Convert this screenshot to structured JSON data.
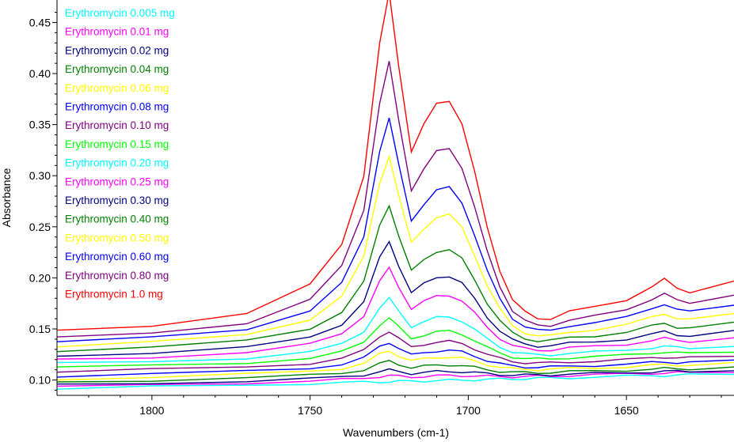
{
  "chart_data": {
    "type": "line",
    "title": "",
    "xlabel": "Wavenumbers (cm-1)",
    "ylabel": "Absorbance",
    "xlim": [
      1830,
      1616
    ],
    "x_reversed": true,
    "ylim": [
      0.085,
      0.472
    ],
    "grid": false,
    "legend_placement": "top-left",
    "x_ticks": [
      1800,
      1750,
      1700,
      1650
    ],
    "y_ticks": [
      0.1,
      0.15,
      0.2,
      0.25,
      0.3,
      0.35,
      0.4,
      0.45
    ],
    "x_tick_labels": [
      "1800",
      "1750",
      "1700",
      "1650"
    ],
    "y_tick_labels": [
      "0.10",
      "0.15",
      "0.20",
      "0.25",
      "0.30",
      "0.35",
      "0.40",
      "0.45"
    ],
    "series_shape_x": [
      1830,
      1800,
      1770,
      1750,
      1740,
      1733,
      1728,
      1725,
      1722,
      1718,
      1714,
      1710,
      1706,
      1702,
      1698,
      1694,
      1690,
      1686,
      1682,
      1678,
      1674,
      1668,
      1660,
      1650,
      1642,
      1638,
      1634,
      1630,
      1616
    ],
    "series": [
      {
        "name": "Erythromycin 0.005 mg",
        "color": "#00ffff",
        "b0": 0.091,
        "slope": 0.015,
        "peak": 0.0
      },
      {
        "name": "Erythromycin 0.01 mg",
        "color": "#ff00ff",
        "b0": 0.093,
        "slope": 0.015,
        "peak": 0.004
      },
      {
        "name": "Erythromycin 0.02 mg",
        "color": "#000080",
        "b0": 0.095,
        "slope": 0.014,
        "peak": 0.008
      },
      {
        "name": "Erythromycin 0.04 mg",
        "color": "#008000",
        "b0": 0.098,
        "slope": 0.013,
        "peak": 0.014
      },
      {
        "name": "Erythromycin 0.06 mg",
        "color": "#ffff00",
        "b0": 0.101,
        "slope": 0.013,
        "peak": 0.021
      },
      {
        "name": "Erythromycin 0.08 mg",
        "color": "#0000ff",
        "b0": 0.104,
        "slope": 0.012,
        "peak": 0.027
      },
      {
        "name": "Erythromycin 0.10 mg",
        "color": "#800080",
        "b0": 0.108,
        "slope": 0.012,
        "peak": 0.034
      },
      {
        "name": "Erythromycin 0.15 mg",
        "color": "#00ff00",
        "b0": 0.112,
        "slope": 0.012,
        "peak": 0.043
      },
      {
        "name": "Erythromycin 0.20 mg",
        "color": "#00ffff",
        "b0": 0.116,
        "slope": 0.012,
        "peak": 0.058
      },
      {
        "name": "Erythromycin 0.25 mg",
        "color": "#ff00ff",
        "b0": 0.12,
        "slope": 0.013,
        "peak": 0.083
      },
      {
        "name": "Erythromycin 0.30 mg",
        "color": "#000080",
        "b0": 0.124,
        "slope": 0.013,
        "peak": 0.105
      },
      {
        "name": "Erythromycin 0.40 mg",
        "color": "#008000",
        "b0": 0.129,
        "slope": 0.013,
        "peak": 0.136
      },
      {
        "name": "Erythromycin 0.50 mg",
        "color": "#ffff00",
        "b0": 0.133,
        "slope": 0.014,
        "peak": 0.18
      },
      {
        "name": "Erythromycin 0.60 mg",
        "color": "#0000ff",
        "b0": 0.137,
        "slope": 0.016,
        "peak": 0.212
      },
      {
        "name": "Erythromycin 0.80 mg",
        "color": "#800080",
        "b0": 0.141,
        "slope": 0.017,
        "peak": 0.262
      },
      {
        "name": "Erythromycin 1.0 mg",
        "color": "#ff0000",
        "b0": 0.148,
        "slope": 0.017,
        "peak": 0.322
      }
    ]
  }
}
